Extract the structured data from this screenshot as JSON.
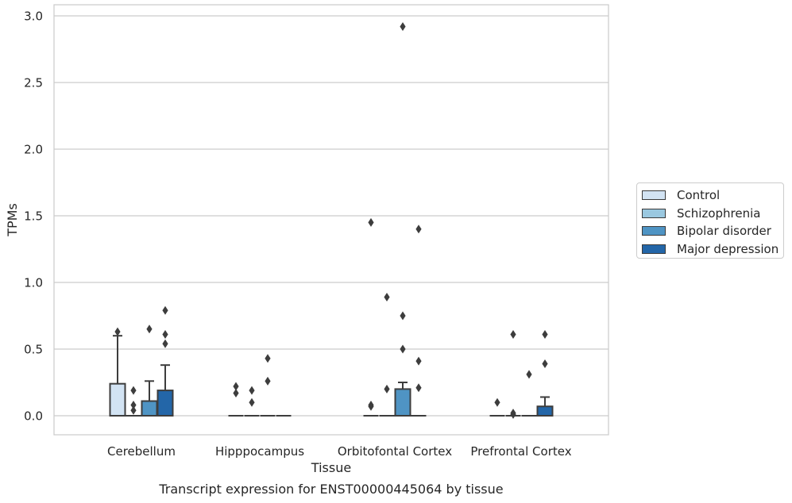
{
  "chart_data": {
    "type": "box",
    "title": "Transcript expression for ENST00000445064 by tissue",
    "xlabel": "Tissue",
    "ylabel": "TPMs",
    "ylim": [
      -0.14,
      3.07
    ],
    "yticks": [
      "0.0",
      "0.5",
      "1.0",
      "1.5",
      "2.0",
      "2.5",
      "3.0"
    ],
    "grid": true,
    "legend_position": "right",
    "categories": [
      "Cerebellum",
      "Hipppocampus",
      "Orbitofontal Cortex",
      "Prefrontal Cortex"
    ],
    "series": [
      {
        "name": "Control",
        "color": "#d2e3f3",
        "boxes": [
          {
            "q1": 0,
            "median": 0,
            "q3": 0.24,
            "whisker_low": 0,
            "whisker_high": 0.6,
            "outliers": [
              0.63
            ]
          },
          {
            "q1": 0,
            "median": 0,
            "q3": 0,
            "whisker_low": 0,
            "whisker_high": 0,
            "outliers": [
              0.17,
              0.22
            ]
          },
          {
            "q1": 0,
            "median": 0,
            "q3": 0,
            "whisker_low": 0,
            "whisker_high": 0,
            "outliers": [
              0.07,
              0.08,
              1.45
            ]
          },
          {
            "q1": 0,
            "median": 0,
            "q3": 0,
            "whisker_low": 0,
            "whisker_high": 0,
            "outliers": [
              0.1
            ]
          }
        ]
      },
      {
        "name": "Schizophrenia",
        "color": "#9ac8e0",
        "boxes": [
          {
            "q1": 0,
            "median": 0,
            "q3": 0,
            "whisker_low": 0,
            "whisker_high": 0,
            "outliers": [
              0.04,
              0.08,
              0.19
            ]
          },
          {
            "q1": 0,
            "median": 0,
            "q3": 0,
            "whisker_low": 0,
            "whisker_high": 0,
            "outliers": [
              0.1,
              0.19
            ]
          },
          {
            "q1": 0,
            "median": 0,
            "q3": 0,
            "whisker_low": 0,
            "whisker_high": 0,
            "outliers": [
              0.2,
              0.89
            ]
          },
          {
            "q1": 0,
            "median": 0,
            "q3": 0,
            "whisker_low": 0,
            "whisker_high": 0,
            "outliers": [
              0.01,
              0.02,
              0.61
            ]
          }
        ]
      },
      {
        "name": "Bipolar disorder",
        "color": "#4f94c4",
        "boxes": [
          {
            "q1": 0,
            "median": 0,
            "q3": 0.11,
            "whisker_low": 0,
            "whisker_high": 0.26,
            "outliers": [
              0.65
            ]
          },
          {
            "q1": 0,
            "median": 0,
            "q3": 0,
            "whisker_low": 0,
            "whisker_high": 0,
            "outliers": [
              0.26,
              0.43
            ]
          },
          {
            "q1": 0,
            "median": 0,
            "q3": 0.2,
            "whisker_low": 0,
            "whisker_high": 0.25,
            "outliers": [
              0.5,
              0.75,
              2.92
            ]
          },
          {
            "q1": 0,
            "median": 0,
            "q3": 0,
            "whisker_low": 0,
            "whisker_high": 0,
            "outliers": [
              0.31
            ]
          }
        ]
      },
      {
        "name": "Major depression",
        "color": "#2366a8",
        "boxes": [
          {
            "q1": 0,
            "median": 0,
            "q3": 0.19,
            "whisker_low": 0,
            "whisker_high": 0.38,
            "outliers": [
              0.54,
              0.61,
              0.79
            ]
          },
          {
            "q1": 0,
            "median": 0,
            "q3": 0,
            "whisker_low": 0,
            "whisker_high": 0,
            "outliers": []
          },
          {
            "q1": 0,
            "median": 0,
            "q3": 0,
            "whisker_low": 0,
            "whisker_high": 0,
            "outliers": [
              0.21,
              0.41,
              1.4
            ]
          },
          {
            "q1": 0,
            "median": 0,
            "q3": 0.07,
            "whisker_low": 0,
            "whisker_high": 0.14,
            "outliers": [
              0.39,
              0.61
            ]
          }
        ]
      }
    ]
  }
}
